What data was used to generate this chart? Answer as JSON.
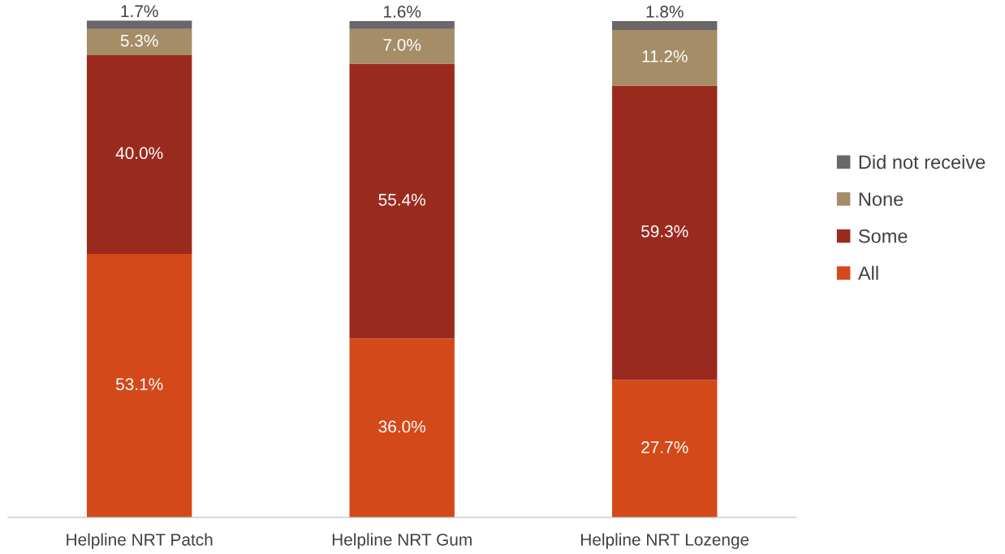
{
  "chart_data": {
    "type": "bar",
    "stacked": true,
    "categories": [
      "Helpline NRT Patch",
      "Helpline NRT Gum",
      "Helpline NRT Lozenge"
    ],
    "series": [
      {
        "name": "All",
        "color": "#d4491a",
        "values": [
          53.1,
          36.0,
          27.7
        ],
        "value_labels": [
          "53.1%",
          "36.0%",
          "27.7%"
        ]
      },
      {
        "name": "Some",
        "color": "#9b2a1e",
        "values": [
          40.0,
          55.4,
          59.3
        ],
        "value_labels": [
          "40.0%",
          "55.4%",
          "59.3%"
        ]
      },
      {
        "name": "None",
        "color": "#a58d68",
        "values": [
          5.3,
          7.0,
          11.2
        ],
        "value_labels": [
          "5.3%",
          "7.0%",
          "11.2%"
        ]
      },
      {
        "name": "Did not receive",
        "color": "#6b6767",
        "values": [
          1.7,
          1.6,
          1.8
        ],
        "value_labels": [
          "1.7%",
          "1.6%",
          "1.8%"
        ]
      }
    ],
    "legend": "right",
    "grid": false
  }
}
